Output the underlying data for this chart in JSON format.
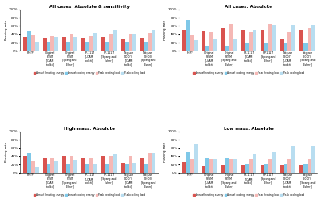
{
  "titles": [
    "All cases: Absolute & sensitivity",
    "All cases: Absolute",
    "High mass: Absolute",
    "Low mass: Absolute"
  ],
  "x_labels": [
    "PHPP",
    "Original\nRTSM\n[LCAM\ntoolkit]",
    "Original\nRTSM\n[Spang and\nFisher]",
    "RP-1117\n[LCAM\ntoolkit]",
    "RP-1117\n[Spang and\nFisher]",
    "Neguse\n(2007)\n[LCAM\ntoolkit]",
    "Neguse\n(2007)\n[Spang and\nFisher]"
  ],
  "legend_labels": [
    "Annual heating energy",
    "Annual cooling energy",
    "Peak heating load",
    "Peak cooling load"
  ],
  "colors": [
    "#d9534f",
    "#7fc8e8",
    "#f5b8b5",
    "#b8ddf0"
  ],
  "subplot_data": [
    {
      "annual_heating": [
        33,
        32,
        34,
        32,
        34,
        28,
        32
      ],
      "annual_cooling": [
        47,
        22,
        22,
        22,
        22,
        22,
        22
      ],
      "peak_heating": [
        37,
        35,
        39,
        35,
        39,
        40,
        44
      ],
      "peak_cooling": [
        22,
        34,
        34,
        43,
        50,
        42,
        50
      ]
    },
    {
      "annual_heating": [
        52,
        48,
        55,
        50,
        52,
        30,
        50
      ],
      "annual_cooling": [
        75,
        12,
        12,
        20,
        20,
        20,
        20
      ],
      "peak_heating": [
        38,
        46,
        64,
        46,
        64,
        46,
        54
      ],
      "peak_cooling": [
        26,
        30,
        30,
        50,
        62,
        62,
        62
      ]
    },
    {
      "annual_heating": [
        40,
        36,
        40,
        36,
        40,
        24,
        36
      ],
      "annual_cooling": [
        47,
        20,
        20,
        20,
        20,
        20,
        20
      ],
      "peak_heating": [
        28,
        36,
        40,
        36,
        42,
        40,
        47
      ],
      "peak_cooling": [
        15,
        29,
        30,
        23,
        45,
        25,
        47
      ]
    },
    {
      "annual_heating": [
        27,
        17,
        18,
        18,
        18,
        18,
        18
      ],
      "annual_cooling": [
        50,
        36,
        36,
        20,
        20,
        20,
        20
      ],
      "peak_heating": [
        34,
        34,
        34,
        34,
        34,
        34,
        34
      ],
      "peak_cooling": [
        70,
        35,
        35,
        45,
        50,
        65,
        65
      ]
    }
  ],
  "ylim": [
    0,
    100
  ],
  "yticks": [
    0,
    20,
    40,
    60,
    80,
    100
  ],
  "yticklabels": [
    "0%",
    "20%",
    "40%",
    "60%",
    "80%",
    "100%"
  ],
  "ylabel": "Passing rate",
  "fig_bgcolor": "#ffffff"
}
